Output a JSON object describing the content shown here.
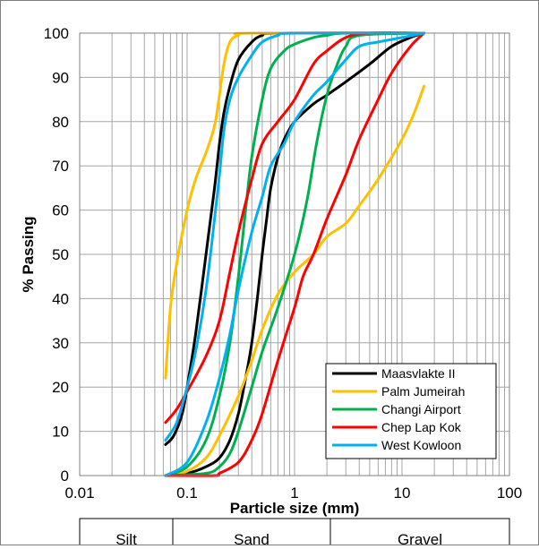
{
  "chart_data": {
    "type": "line",
    "title": "",
    "xlabel": "Particle size (mm)",
    "ylabel": "% Passing",
    "xscale": "log",
    "xlim": [
      0.01,
      100
    ],
    "ylim": [
      0,
      100
    ],
    "grid": true,
    "legend_position": "bottom-right",
    "x_tick_labels": [
      "0.01",
      "0.1",
      "1",
      "10",
      "100"
    ],
    "y_tick_labels": [
      "0",
      "10",
      "20",
      "30",
      "40",
      "50",
      "60",
      "70",
      "80",
      "90",
      "100"
    ],
    "series": [
      {
        "name": "Maasvlakte II",
        "color": "#000000",
        "curves": [
          [
            [
              0.063,
              7
            ],
            [
              0.075,
              9
            ],
            [
              0.09,
              14
            ],
            [
              0.1,
              20
            ],
            [
              0.12,
              32
            ],
            [
              0.15,
              50
            ],
            [
              0.18,
              65
            ],
            [
              0.2,
              75
            ],
            [
              0.22,
              82
            ],
            [
              0.25,
              88
            ],
            [
              0.3,
              94
            ],
            [
              0.4,
              98
            ],
            [
              0.5,
              99.5
            ],
            [
              0.7,
              100
            ],
            [
              16,
              100
            ]
          ],
          [
            [
              0.063,
              0
            ],
            [
              0.1,
              0.5
            ],
            [
              0.15,
              2
            ],
            [
              0.2,
              4
            ],
            [
              0.25,
              8
            ],
            [
              0.3,
              14
            ],
            [
              0.35,
              22
            ],
            [
              0.4,
              30
            ],
            [
              0.45,
              40
            ],
            [
              0.5,
              50
            ],
            [
              0.55,
              58
            ],
            [
              0.6,
              65
            ],
            [
              0.7,
              72
            ],
            [
              0.8,
              76
            ],
            [
              1.0,
              80
            ],
            [
              1.5,
              84
            ],
            [
              2,
              86
            ],
            [
              3,
              89
            ],
            [
              5,
              93
            ],
            [
              8,
              97
            ],
            [
              12,
              99
            ],
            [
              16,
              100
            ]
          ]
        ]
      },
      {
        "name": "Palm Jumeirah",
        "color": "#ffc000",
        "curves": [
          [
            [
              0.063,
              22
            ],
            [
              0.07,
              38
            ],
            [
              0.08,
              48
            ],
            [
              0.1,
              60
            ],
            [
              0.12,
              67
            ],
            [
              0.15,
              73
            ],
            [
              0.18,
              79
            ],
            [
              0.2,
              86
            ],
            [
              0.22,
              93
            ],
            [
              0.25,
              98
            ],
            [
              0.3,
              99.5
            ],
            [
              0.4,
              100
            ],
            [
              16,
              100
            ]
          ],
          [
            [
              0.063,
              0
            ],
            [
              0.1,
              1
            ],
            [
              0.15,
              4
            ],
            [
              0.2,
              9
            ],
            [
              0.3,
              18
            ],
            [
              0.4,
              26
            ],
            [
              0.5,
              33
            ],
            [
              0.7,
              41
            ],
            [
              1,
              46
            ],
            [
              1.5,
              50
            ],
            [
              2,
              54
            ],
            [
              3,
              57
            ],
            [
              4,
              61
            ],
            [
              6,
              67
            ],
            [
              10,
              76
            ],
            [
              13,
              82
            ],
            [
              16,
              88
            ]
          ]
        ]
      },
      {
        "name": "Changi Airport",
        "color": "#00b050",
        "curves": [
          [
            [
              0.063,
              0
            ],
            [
              0.1,
              2
            ],
            [
              0.15,
              8
            ],
            [
              0.2,
              18
            ],
            [
              0.25,
              30
            ],
            [
              0.3,
              45
            ],
            [
              0.35,
              60
            ],
            [
              0.4,
              72
            ],
            [
              0.5,
              85
            ],
            [
              0.6,
              92
            ],
            [
              0.8,
              96
            ],
            [
              1,
              97.5
            ],
            [
              1.5,
              99
            ],
            [
              2,
              99.5
            ],
            [
              3,
              100
            ],
            [
              16,
              100
            ]
          ],
          [
            [
              0.063,
              0
            ],
            [
              0.15,
              0.5
            ],
            [
              0.2,
              2
            ],
            [
              0.25,
              5
            ],
            [
              0.3,
              10
            ],
            [
              0.4,
              20
            ],
            [
              0.5,
              28
            ],
            [
              0.7,
              38
            ],
            [
              1,
              50
            ],
            [
              1.3,
              62
            ],
            [
              1.6,
              75
            ],
            [
              2,
              86
            ],
            [
              2.5,
              93
            ],
            [
              3,
              97
            ],
            [
              4,
              99.5
            ],
            [
              16,
              100
            ]
          ]
        ]
      },
      {
        "name": "Chep Lap Kok",
        "color": "#ff0000",
        "curves": [
          [
            [
              0.063,
              12
            ],
            [
              0.08,
              15
            ],
            [
              0.1,
              19
            ],
            [
              0.15,
              27
            ],
            [
              0.2,
              35
            ],
            [
              0.25,
              46
            ],
            [
              0.3,
              55
            ],
            [
              0.4,
              67
            ],
            [
              0.5,
              75
            ],
            [
              0.7,
              80
            ],
            [
              1,
              85
            ],
            [
              1.5,
              93
            ],
            [
              2,
              96
            ],
            [
              3,
              99
            ],
            [
              5,
              100
            ],
            [
              16,
              100
            ]
          ],
          [
            [
              0.063,
              0
            ],
            [
              0.18,
              0
            ],
            [
              0.2,
              0.5
            ],
            [
              0.3,
              3
            ],
            [
              0.4,
              8
            ],
            [
              0.5,
              14
            ],
            [
              0.7,
              26
            ],
            [
              1,
              38
            ],
            [
              1.2,
              45
            ],
            [
              1.5,
              50
            ],
            [
              2,
              58
            ],
            [
              3,
              68
            ],
            [
              4,
              76
            ],
            [
              6,
              85
            ],
            [
              8,
              91
            ],
            [
              12,
              97
            ],
            [
              16,
              100
            ]
          ]
        ]
      },
      {
        "name": "West Kowloon",
        "color": "#00b0f0",
        "curves": [
          [
            [
              0.063,
              8
            ],
            [
              0.08,
              12
            ],
            [
              0.1,
              20
            ],
            [
              0.12,
              28
            ],
            [
              0.15,
              42
            ],
            [
              0.18,
              58
            ],
            [
              0.2,
              68
            ],
            [
              0.22,
              78
            ],
            [
              0.25,
              85
            ],
            [
              0.3,
              90
            ],
            [
              0.4,
              95
            ],
            [
              0.5,
              98
            ],
            [
              0.7,
              99.5
            ],
            [
              1,
              100
            ],
            [
              16,
              100
            ]
          ],
          [
            [
              0.063,
              0
            ],
            [
              0.1,
              3
            ],
            [
              0.15,
              12
            ],
            [
              0.2,
              22
            ],
            [
              0.25,
              32
            ],
            [
              0.3,
              42
            ],
            [
              0.4,
              55
            ],
            [
              0.5,
              63
            ],
            [
              0.6,
              70
            ],
            [
              0.8,
              75
            ],
            [
              1,
              80
            ],
            [
              1.5,
              86
            ],
            [
              2,
              89
            ],
            [
              3,
              94
            ],
            [
              4,
              97
            ],
            [
              6,
              98
            ],
            [
              10,
              99
            ],
            [
              16,
              100
            ]
          ]
        ]
      }
    ]
  },
  "soil_classes": [
    "Silt",
    "Sand",
    "Gravel"
  ]
}
